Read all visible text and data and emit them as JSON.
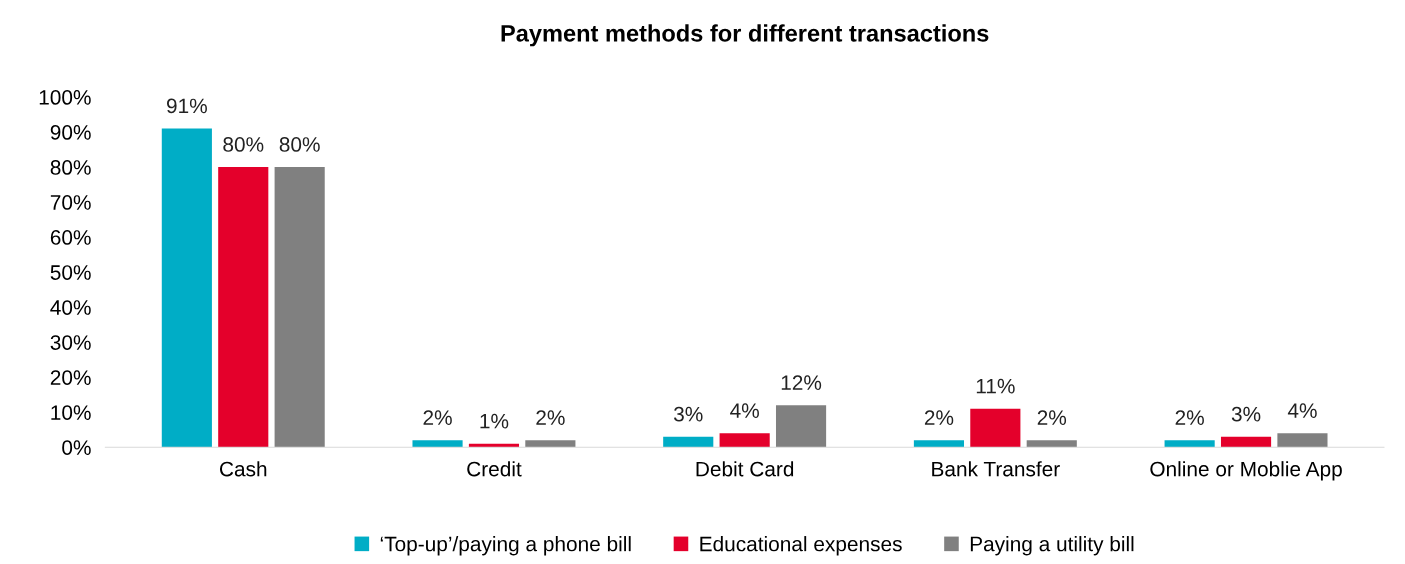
{
  "chart_data": {
    "type": "bar",
    "title": "Payment methods for different transactions",
    "categories": [
      "Cash",
      "Credit",
      "Debit Card",
      "Bank Transfer",
      "Online or Moblie App"
    ],
    "series": [
      {
        "name": "‘Top-up’/paying a phone bill",
        "color": "#00adc6",
        "values": [
          91,
          2,
          3,
          2,
          2
        ],
        "value_labels": [
          "91%",
          "2%",
          "3%",
          "2%",
          "2%"
        ]
      },
      {
        "name": "Educational expenses",
        "color": "#e4002b",
        "values": [
          80,
          1,
          4,
          11,
          3
        ],
        "value_labels": [
          "80%",
          "1%",
          "4%",
          "11%",
          "3%"
        ]
      },
      {
        "name": "Paying a utility bill",
        "color": "#808080",
        "values": [
          80,
          2,
          12,
          2,
          4
        ],
        "value_labels": [
          "80%",
          "2%",
          "12%",
          "2%",
          "4%"
        ]
      }
    ],
    "ylim": [
      0,
      100
    ],
    "yticks": [
      {
        "value": 0,
        "label": "0%"
      },
      {
        "value": 10,
        "label": "10%"
      },
      {
        "value": 20,
        "label": "20%"
      },
      {
        "value": 30,
        "label": "30%"
      },
      {
        "value": 40,
        "label": "40%"
      },
      {
        "value": 50,
        "label": "50%"
      },
      {
        "value": 60,
        "label": "60%"
      },
      {
        "value": 70,
        "label": "70%"
      },
      {
        "value": 80,
        "label": "80%"
      },
      {
        "value": 90,
        "label": "90%"
      },
      {
        "value": 100,
        "label": "100%"
      }
    ],
    "grid": false,
    "legend": "bottom"
  }
}
